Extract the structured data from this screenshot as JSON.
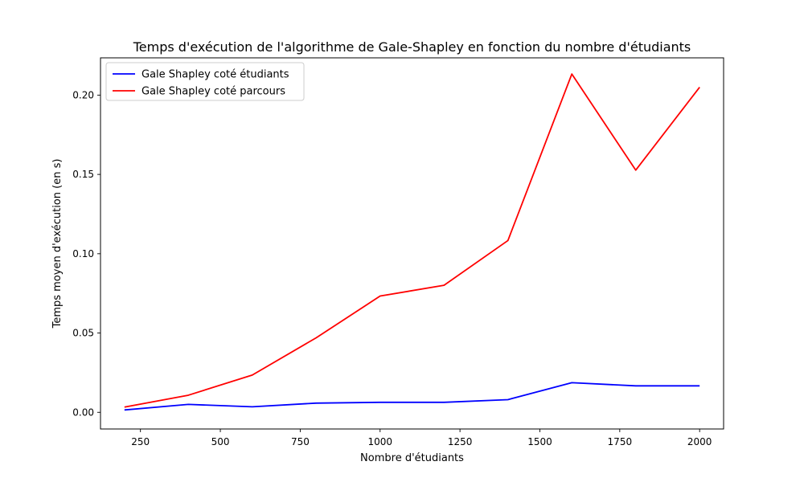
{
  "chart_data": {
    "type": "line",
    "title": "Temps d'exécution de l'algorithme de Gale-Shapley en fonction du nombre d'étudiants",
    "xlabel": "Nombre d'étudiants",
    "ylabel": "Temps moyen d'exécution (en s)",
    "xlim": [
      125,
      2075
    ],
    "ylim": [
      -0.0105,
      0.2235
    ],
    "x_ticks": [
      250,
      500,
      750,
      1000,
      1250,
      1500,
      1750,
      2000
    ],
    "y_ticks": [
      0.0,
      0.05,
      0.1,
      0.15,
      0.2
    ],
    "y_tick_labels": [
      "0.00",
      "0.05",
      "0.10",
      "0.15",
      "0.20"
    ],
    "grid": false,
    "legend_position": "upper-left",
    "x": [
      200,
      400,
      600,
      800,
      1000,
      1200,
      1400,
      1600,
      1800,
      2000
    ],
    "series": [
      {
        "name": "Gale Shapley coté étudiants",
        "color": "#0000ff",
        "values": [
          0.0015,
          0.005,
          0.0035,
          0.0058,
          0.0063,
          0.0063,
          0.008,
          0.0187,
          0.0167,
          0.0167
        ]
      },
      {
        "name": "Gale Shapley coté parcours",
        "color": "#ff0000",
        "values": [
          0.0033,
          0.0108,
          0.0235,
          0.047,
          0.0733,
          0.0801,
          0.1083,
          0.2133,
          0.1527,
          0.205
        ]
      }
    ]
  }
}
